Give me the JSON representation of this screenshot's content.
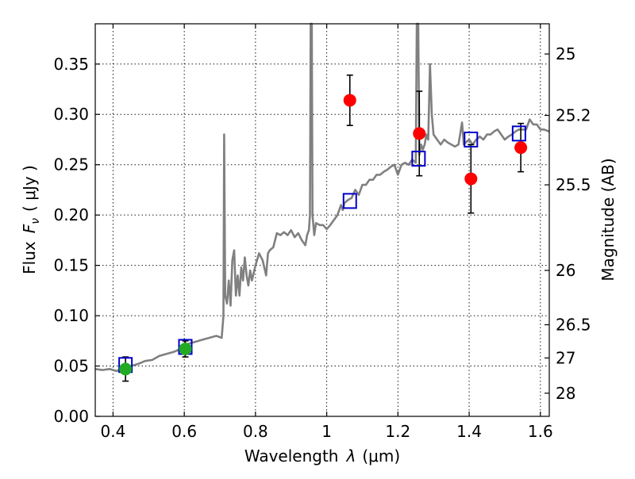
{
  "chart_data": {
    "type": "scatter",
    "xlabel_prefix": "Wavelength",
    "xlabel_symbol": "λ",
    "xlabel_unit": "(μm)",
    "ylabel_prefix": "Flux",
    "ylabel_symbol": "F",
    "ylabel_subscript": "ν",
    "ylabel_unit": "( μJy )",
    "y2label": "Magnitude (AB)",
    "xlim": [
      0.35,
      1.625
    ],
    "ylim": [
      0.0,
      0.39
    ],
    "grid": true,
    "x_ticks": [
      {
        "value": 0.4,
        "label": "0.4"
      },
      {
        "value": 0.6,
        "label": "0.6"
      },
      {
        "value": 0.8,
        "label": "0.8"
      },
      {
        "value": 1.0,
        "label": "1"
      },
      {
        "value": 1.2,
        "label": "1.2"
      },
      {
        "value": 1.4,
        "label": "1.4"
      },
      {
        "value": 1.6,
        "label": "1.6"
      }
    ],
    "y_ticks": [
      {
        "value": 0.0,
        "label": "0.00"
      },
      {
        "value": 0.05,
        "label": "0.05"
      },
      {
        "value": 0.1,
        "label": "0.10"
      },
      {
        "value": 0.15,
        "label": "0.15"
      },
      {
        "value": 0.2,
        "label": "0.20"
      },
      {
        "value": 0.25,
        "label": "0.25"
      },
      {
        "value": 0.3,
        "label": "0.30"
      },
      {
        "value": 0.35,
        "label": "0.35"
      }
    ],
    "y2_ticks": [
      {
        "flux": 0.36,
        "label": "25"
      },
      {
        "flux": 0.299,
        "label": "25.2"
      },
      {
        "flux": 0.23,
        "label": "25.5"
      },
      {
        "flux": 0.145,
        "label": "26"
      },
      {
        "flux": 0.091,
        "label": "26.5"
      },
      {
        "flux": 0.058,
        "label": "27"
      },
      {
        "flux": 0.023,
        "label": "28"
      }
    ],
    "series": [
      {
        "kind": "spectrum",
        "color": "#808080",
        "points": [
          [
            0.35,
            0.047
          ],
          [
            0.37,
            0.046
          ],
          [
            0.39,
            0.047
          ],
          [
            0.41,
            0.045
          ],
          [
            0.43,
            0.048
          ],
          [
            0.45,
            0.05
          ],
          [
            0.47,
            0.052
          ],
          [
            0.49,
            0.055
          ],
          [
            0.51,
            0.056
          ],
          [
            0.53,
            0.06
          ],
          [
            0.55,
            0.062
          ],
          [
            0.57,
            0.064
          ],
          [
            0.59,
            0.067
          ],
          [
            0.61,
            0.072
          ],
          [
            0.63,
            0.074
          ],
          [
            0.65,
            0.076
          ],
          [
            0.67,
            0.078
          ],
          [
            0.69,
            0.08
          ],
          [
            0.705,
            0.078
          ],
          [
            0.71,
            0.1
          ],
          [
            0.712,
            0.28
          ],
          [
            0.715,
            0.12
          ],
          [
            0.72,
            0.112
          ],
          [
            0.725,
            0.135
          ],
          [
            0.73,
            0.11
          ],
          [
            0.735,
            0.155
          ],
          [
            0.74,
            0.165
          ],
          [
            0.745,
            0.12
          ],
          [
            0.75,
            0.14
          ],
          [
            0.755,
            0.12
          ],
          [
            0.76,
            0.148
          ],
          [
            0.765,
            0.135
          ],
          [
            0.77,
            0.158
          ],
          [
            0.775,
            0.14
          ],
          [
            0.78,
            0.13
          ],
          [
            0.785,
            0.145
          ],
          [
            0.79,
            0.135
          ],
          [
            0.8,
            0.15
          ],
          [
            0.81,
            0.162
          ],
          [
            0.82,
            0.155
          ],
          [
            0.83,
            0.14
          ],
          [
            0.835,
            0.162
          ],
          [
            0.84,
            0.165
          ],
          [
            0.85,
            0.168
          ],
          [
            0.86,
            0.182
          ],
          [
            0.87,
            0.18
          ],
          [
            0.88,
            0.183
          ],
          [
            0.89,
            0.18
          ],
          [
            0.9,
            0.185
          ],
          [
            0.91,
            0.178
          ],
          [
            0.92,
            0.182
          ],
          [
            0.93,
            0.175
          ],
          [
            0.94,
            0.17
          ],
          [
            0.945,
            0.18
          ],
          [
            0.95,
            0.185
          ],
          [
            0.953,
            0.2
          ],
          [
            0.955,
            0.39
          ],
          [
            0.958,
            0.39
          ],
          [
            0.96,
            0.2
          ],
          [
            0.965,
            0.18
          ],
          [
            0.97,
            0.192
          ],
          [
            0.98,
            0.19
          ],
          [
            0.99,
            0.19
          ],
          [
            1.0,
            0.186
          ],
          [
            1.01,
            0.19
          ],
          [
            1.02,
            0.195
          ],
          [
            1.03,
            0.2
          ],
          [
            1.04,
            0.21
          ],
          [
            1.045,
            0.205
          ],
          [
            1.05,
            0.212
          ],
          [
            1.06,
            0.215
          ],
          [
            1.07,
            0.217
          ],
          [
            1.08,
            0.225
          ],
          [
            1.09,
            0.22
          ],
          [
            1.1,
            0.23
          ],
          [
            1.11,
            0.23
          ],
          [
            1.12,
            0.235
          ],
          [
            1.13,
            0.235
          ],
          [
            1.14,
            0.24
          ],
          [
            1.15,
            0.24
          ],
          [
            1.16,
            0.243
          ],
          [
            1.17,
            0.245
          ],
          [
            1.18,
            0.248
          ],
          [
            1.19,
            0.25
          ],
          [
            1.2,
            0.24
          ],
          [
            1.21,
            0.25
          ],
          [
            1.22,
            0.252
          ],
          [
            1.23,
            0.25
          ],
          [
            1.24,
            0.255
          ],
          [
            1.25,
            0.252
          ],
          [
            1.253,
            0.39
          ],
          [
            1.257,
            0.39
          ],
          [
            1.26,
            0.26
          ],
          [
            1.265,
            0.27
          ],
          [
            1.27,
            0.265
          ],
          [
            1.275,
            0.27
          ],
          [
            1.28,
            0.28
          ],
          [
            1.285,
            0.275
          ],
          [
            1.29,
            0.35
          ],
          [
            1.295,
            0.3
          ],
          [
            1.3,
            0.28
          ],
          [
            1.31,
            0.275
          ],
          [
            1.32,
            0.27
          ],
          [
            1.33,
            0.275
          ],
          [
            1.34,
            0.272
          ],
          [
            1.35,
            0.27
          ],
          [
            1.36,
            0.268
          ],
          [
            1.37,
            0.27
          ],
          [
            1.38,
            0.292
          ],
          [
            1.385,
            0.27
          ],
          [
            1.39,
            0.272
          ],
          [
            1.4,
            0.275
          ],
          [
            1.41,
            0.27
          ],
          [
            1.42,
            0.275
          ],
          [
            1.43,
            0.278
          ],
          [
            1.44,
            0.275
          ],
          [
            1.45,
            0.28
          ],
          [
            1.46,
            0.28
          ],
          [
            1.47,
            0.283
          ],
          [
            1.48,
            0.285
          ],
          [
            1.49,
            0.28
          ],
          [
            1.5,
            0.275
          ],
          [
            1.51,
            0.278
          ],
          [
            1.52,
            0.28
          ],
          [
            1.53,
            0.283
          ],
          [
            1.54,
            0.285
          ],
          [
            1.55,
            0.285
          ],
          [
            1.56,
            0.285
          ],
          [
            1.57,
            0.295
          ],
          [
            1.58,
            0.29
          ],
          [
            1.59,
            0.29
          ],
          [
            1.6,
            0.285
          ],
          [
            1.61,
            0.285
          ],
          [
            1.625,
            0.283
          ]
        ]
      },
      {
        "kind": "model-points",
        "marker": "open-square",
        "color": "#0000cc",
        "points": [
          [
            0.435,
            0.051
          ],
          [
            0.603,
            0.069
          ],
          [
            1.065,
            0.214
          ],
          [
            1.258,
            0.256
          ],
          [
            1.405,
            0.275
          ],
          [
            1.54,
            0.281
          ]
        ]
      },
      {
        "kind": "observed-detections",
        "marker": "circle",
        "color": "#22aa22",
        "points": [
          {
            "x": 0.435,
            "y": 0.047,
            "err": 0.012
          },
          {
            "x": 0.603,
            "y": 0.067,
            "err": 0.008
          }
        ]
      },
      {
        "kind": "observed-detections",
        "marker": "circle",
        "color": "#ff0000",
        "points": [
          {
            "x": 1.065,
            "y": 0.314,
            "err": 0.025
          },
          {
            "x": 1.26,
            "y": 0.281,
            "err": 0.042
          },
          {
            "x": 1.405,
            "y": 0.236,
            "err": 0.034
          },
          {
            "x": 1.545,
            "y": 0.267,
            "err": 0.024
          }
        ]
      }
    ]
  }
}
